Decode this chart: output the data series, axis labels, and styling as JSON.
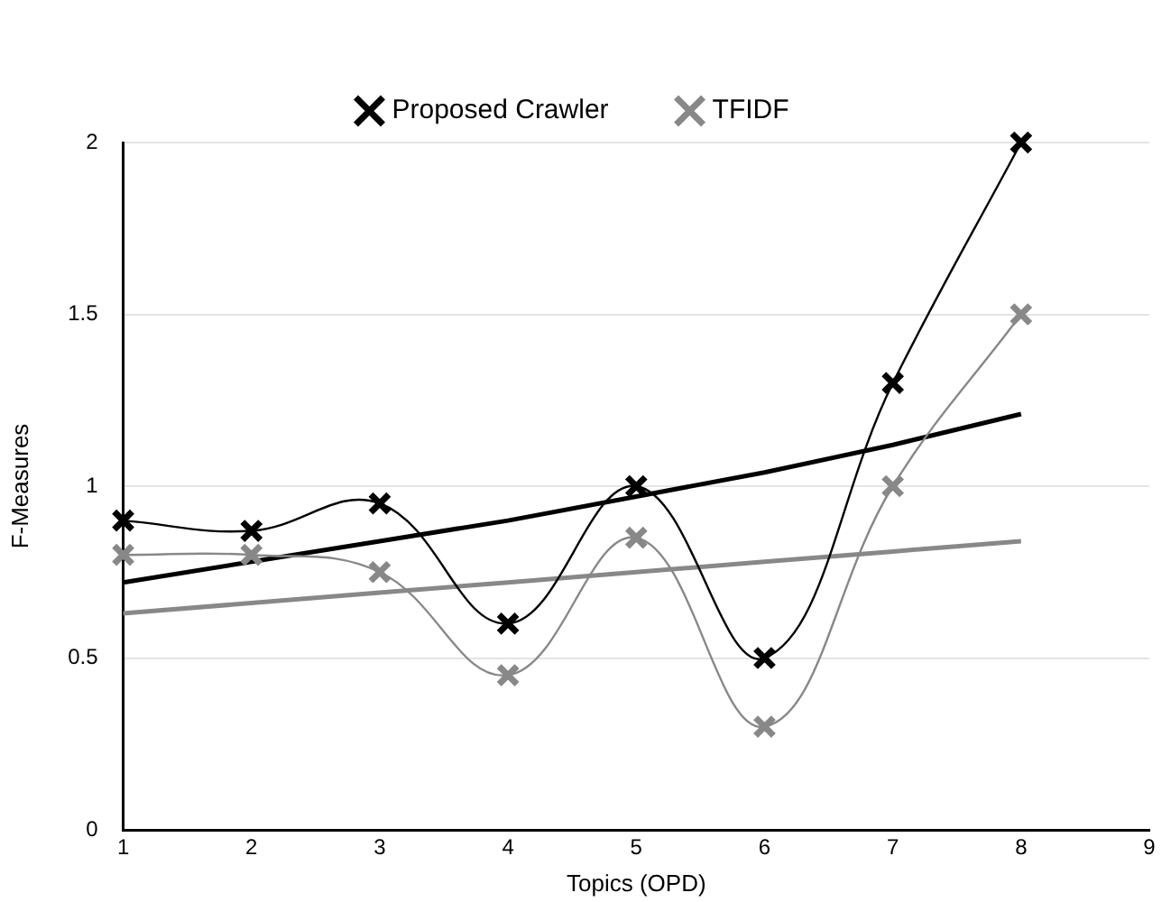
{
  "chart_data": {
    "type": "line",
    "xlabel": "Topics (OPD)",
    "ylabel": "F-Measures",
    "x": [
      1,
      2,
      3,
      4,
      5,
      6,
      7,
      8
    ],
    "series": [
      {
        "name": "Proposed Crawler",
        "color": "#000000",
        "values": [
          0.9,
          0.87,
          0.95,
          0.6,
          1.0,
          0.5,
          1.3,
          2.0
        ]
      },
      {
        "name": "TFIDF",
        "color": "#888888",
        "values": [
          0.8,
          0.8,
          0.75,
          0.45,
          0.85,
          0.3,
          1.0,
          1.5
        ]
      },
      {
        "color": "#000000",
        "marker": "none",
        "values": [
          0.72,
          0.78,
          0.84,
          0.9,
          0.97,
          1.04,
          1.12,
          1.21
        ]
      },
      {
        "color": "#888888",
        "marker": "none",
        "values": [
          0.63,
          0.66,
          0.69,
          0.72,
          0.75,
          0.78,
          0.81,
          0.84
        ]
      }
    ],
    "xlim": [
      1,
      9
    ],
    "xticks": [
      1,
      2,
      3,
      4,
      5,
      6,
      7,
      8,
      9
    ],
    "ylim": [
      0,
      2
    ],
    "yticks": [
      0,
      0.5,
      1,
      1.5,
      2
    ],
    "grid": "y",
    "legend": "top",
    "marker": "cross"
  }
}
